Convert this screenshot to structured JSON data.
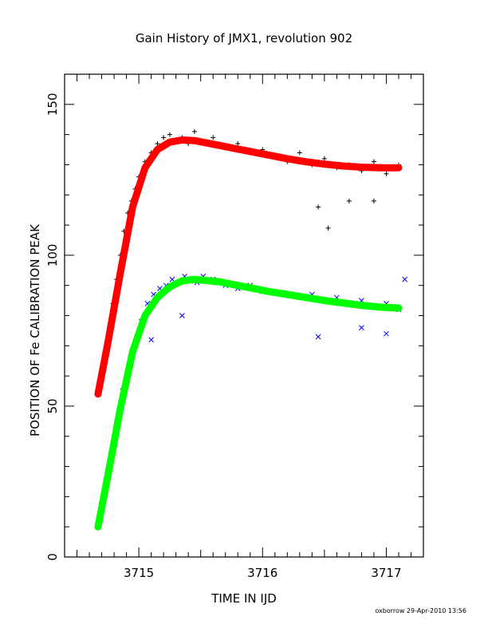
{
  "chart_data": {
    "type": "scatter",
    "title": "Gain History of JMX1, revolution 902",
    "xlabel": "TIME IN IJD",
    "ylabel": "POSITION OF Fe CALIBRATION PEAK",
    "xlim": [
      3714.4,
      3717.3
    ],
    "ylim": [
      0,
      160
    ],
    "xticks": [
      3715,
      3716,
      3717
    ],
    "yticks": [
      0,
      50,
      100,
      150
    ],
    "grid": false,
    "footer": "oxborrow 29-Apr-2010 13:56",
    "series": [
      {
        "marker": "plus",
        "color": "#000000",
        "role": "data",
        "x": [
          3714.67,
          3714.7,
          3714.73,
          3714.76,
          3714.79,
          3714.82,
          3714.85,
          3714.88,
          3714.91,
          3714.94,
          3714.97,
          3715.0,
          3715.05,
          3715.1,
          3715.15,
          3715.2,
          3715.25,
          3715.3,
          3715.35,
          3715.4,
          3715.45,
          3715.5,
          3715.55,
          3715.6,
          3715.7,
          3715.8,
          3715.9,
          3716.0,
          3716.1,
          3716.2,
          3716.3,
          3716.4,
          3716.5,
          3716.6,
          3716.7,
          3716.8,
          3716.9,
          3717.0,
          3717.1,
          3716.53,
          3716.7,
          3716.9,
          3716.45
        ],
        "y": [
          54,
          60,
          68,
          76,
          84,
          92,
          100,
          108,
          114,
          118,
          122,
          126,
          131,
          134,
          137,
          139,
          140,
          138,
          139,
          137,
          141,
          138,
          137,
          139,
          136,
          137,
          134,
          135,
          133,
          131,
          134,
          130,
          132,
          129,
          130,
          128,
          131,
          127,
          130,
          109,
          118,
          118,
          116
        ]
      },
      {
        "marker": "x",
        "color": "#0000ff",
        "role": "data",
        "x": [
          3714.67,
          3714.72,
          3714.77,
          3714.82,
          3714.87,
          3714.92,
          3714.97,
          3715.02,
          3715.07,
          3715.12,
          3715.17,
          3715.22,
          3715.27,
          3715.32,
          3715.37,
          3715.42,
          3715.47,
          3715.52,
          3715.6,
          3715.7,
          3715.8,
          3715.9,
          3716.0,
          3716.1,
          3716.2,
          3716.3,
          3716.4,
          3716.5,
          3716.6,
          3716.7,
          3716.8,
          3716.9,
          3717.0,
          3717.1,
          3715.1,
          3715.35,
          3716.45,
          3716.8,
          3717.0,
          3717.15
        ],
        "y": [
          10,
          20,
          32,
          44,
          55,
          63,
          70,
          78,
          84,
          87,
          89,
          90,
          92,
          91,
          93,
          92,
          91,
          93,
          92,
          90,
          89,
          90,
          88,
          88,
          87,
          86,
          87,
          85,
          86,
          84,
          85,
          83,
          84,
          82,
          72,
          80,
          73,
          76,
          74,
          92
        ]
      },
      {
        "color": "#ff0000",
        "role": "fit",
        "x": [
          3714.67,
          3714.75,
          3714.85,
          3714.95,
          3715.05,
          3715.15,
          3715.25,
          3715.35,
          3715.45,
          3715.55,
          3715.65,
          3715.75,
          3715.85,
          3715.95,
          3716.05,
          3716.2,
          3716.35,
          3716.5,
          3716.65,
          3716.8,
          3716.95,
          3717.1
        ],
        "y": [
          54,
          71,
          94,
          116,
          129,
          135,
          137.5,
          138.2,
          138,
          137.2,
          136.4,
          135.6,
          134.8,
          134,
          133.2,
          132,
          131,
          130.2,
          129.6,
          129.2,
          129,
          129
        ]
      },
      {
        "color": "#00ff00",
        "role": "fit",
        "x": [
          3714.67,
          3714.75,
          3714.85,
          3714.95,
          3715.05,
          3715.15,
          3715.25,
          3715.35,
          3715.45,
          3715.55,
          3715.65,
          3715.75,
          3715.85,
          3715.95,
          3716.05,
          3716.2,
          3716.35,
          3716.5,
          3716.65,
          3716.8,
          3716.95,
          3717.1
        ],
        "y": [
          10,
          27,
          49,
          68,
          80,
          86,
          89.5,
          91.5,
          92,
          91.6,
          91.2,
          90.4,
          89.6,
          88.8,
          88,
          87,
          86,
          85,
          84.2,
          83.4,
          82.8,
          82.5
        ]
      }
    ]
  }
}
